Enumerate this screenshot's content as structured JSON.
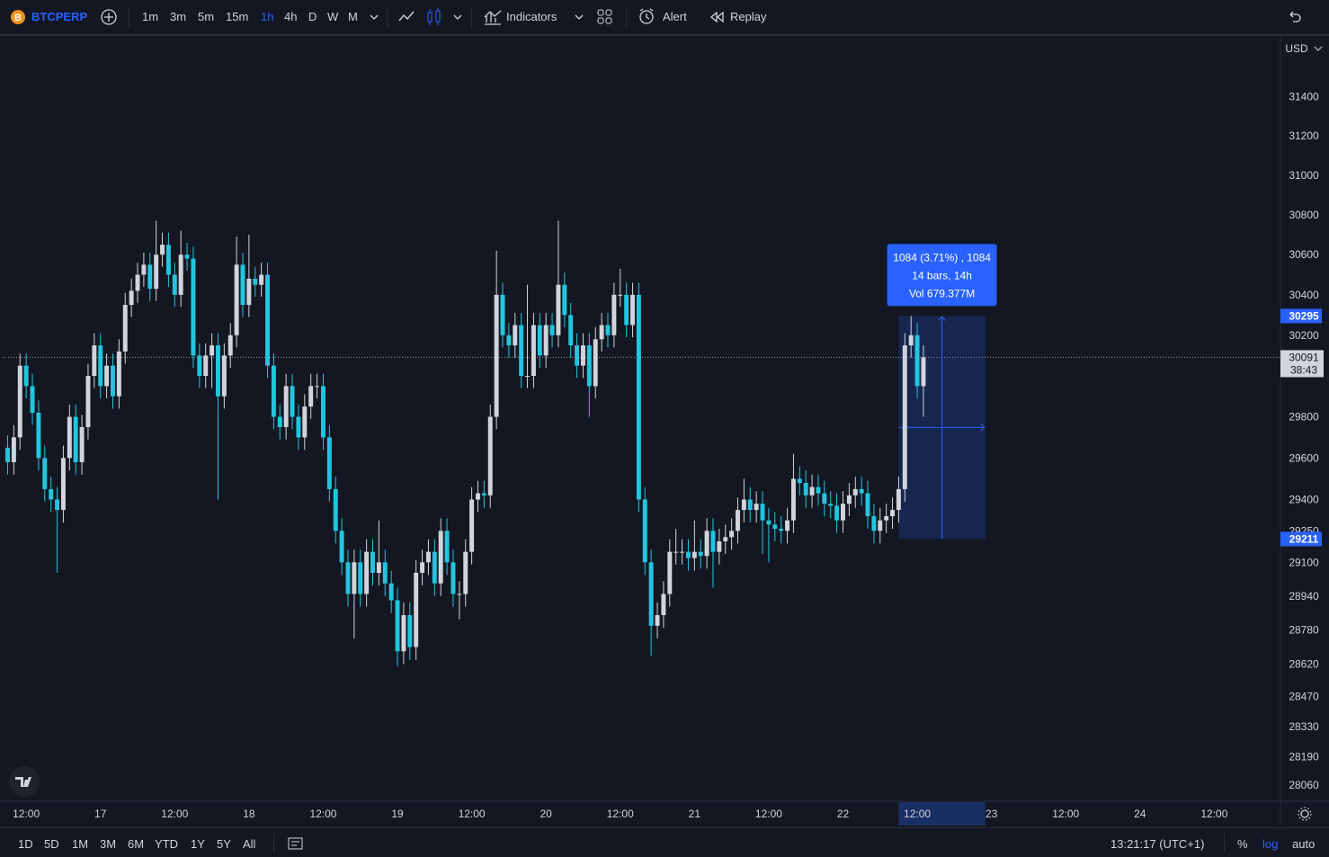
{
  "toolbar": {
    "symbol": "BTCPERP",
    "intervals": [
      "1m",
      "3m",
      "5m",
      "15m",
      "1h",
      "4h",
      "D",
      "W",
      "M"
    ],
    "active_interval": 4,
    "indicators": "Indicators",
    "alert": "Alert",
    "replay": "Replay"
  },
  "chart_data": {
    "type": "candlestick",
    "currency": "USD",
    "log_scale": true,
    "grid": false,
    "up_color": "#d1d4dc",
    "down_color": "#22c5de",
    "x": [
      9,
      10,
      11,
      12,
      13,
      14,
      15,
      16,
      17,
      18,
      19,
      20,
      21,
      22,
      23,
      24,
      25,
      26,
      27,
      28,
      29,
      30,
      31,
      32,
      33,
      34,
      35,
      36,
      37,
      38,
      39,
      40,
      41,
      42,
      43,
      44,
      45,
      46,
      47,
      48,
      49,
      50,
      51,
      52,
      53,
      54,
      55,
      56,
      57,
      58,
      59,
      60,
      61,
      62,
      63,
      64,
      65,
      66,
      67,
      68,
      69,
      70,
      71,
      72,
      73,
      74,
      75,
      76,
      77,
      78,
      79,
      80,
      81,
      82,
      83,
      84,
      85,
      86,
      87,
      88,
      89,
      90,
      91,
      92,
      93,
      94,
      95,
      96,
      97,
      98,
      99,
      100,
      101,
      102,
      103,
      104,
      105,
      106,
      107,
      108,
      109,
      110,
      111,
      112,
      113,
      114,
      115,
      116,
      117,
      118,
      119,
      120,
      121,
      122,
      123,
      124,
      125,
      126,
      127,
      128,
      129,
      130,
      131,
      132,
      133,
      134,
      135,
      136,
      137,
      138,
      139,
      140,
      141,
      142,
      143,
      144,
      145,
      146,
      147,
      148,
      149,
      150,
      151,
      152,
      153,
      154,
      155,
      156,
      157
    ],
    "open": [
      29650,
      29580,
      29700,
      30050,
      29950,
      29820,
      29600,
      29450,
      29400,
      29350,
      29600,
      29800,
      29580,
      29750,
      30000,
      30150,
      29950,
      30050,
      29900,
      30120,
      30350,
      30420,
      30500,
      30550,
      30430,
      30600,
      30650,
      30500,
      30400,
      30600,
      30580,
      30100,
      30000,
      30100,
      30150,
      29900,
      30100,
      30200,
      30550,
      30350,
      30480,
      30450,
      30500,
      30050,
      29800,
      29750,
      29950,
      29800,
      29700,
      29850,
      29950,
      29950,
      29700,
      29450,
      29250,
      29100,
      28950,
      29100,
      28950,
      29150,
      29050,
      29100,
      29000,
      28920,
      28680,
      28850,
      28700,
      29050,
      29100,
      29150,
      29000,
      29250,
      29100,
      28950,
      28950,
      29150,
      29400,
      29430,
      29420,
      29800,
      30400,
      30200,
      30150,
      30250,
      30000,
      30000,
      30250,
      30100,
      30250,
      30200,
      30450,
      30300,
      30150,
      30050,
      30150,
      29950,
      30180,
      30250,
      30200,
      30400,
      30400,
      30250,
      30400,
      29400,
      29100,
      28800,
      28850,
      28950,
      29150,
      29150,
      29150,
      29120,
      29150,
      29130,
      29250,
      29150,
      29200,
      29220,
      29250,
      29350,
      29400,
      29350,
      29380,
      29300,
      29280,
      29260,
      29250,
      29300,
      29500,
      29480,
      29420,
      29460,
      29430,
      29380,
      29370,
      29300,
      29380,
      29420,
      29450,
      29430,
      29320,
      29250,
      29300,
      29320,
      29350,
      29450,
      30150,
      30200,
      29950
    ],
    "high": [
      29710,
      29760,
      30110,
      30110,
      30010,
      29880,
      29660,
      29510,
      29460,
      29660,
      29860,
      29860,
      29810,
      30060,
      30210,
      30210,
      30110,
      30110,
      30180,
      30410,
      30480,
      30560,
      30610,
      30610,
      30770,
      30710,
      30710,
      30560,
      30720,
      30660,
      30640,
      30160,
      30160,
      30210,
      30210,
      30160,
      30260,
      30690,
      30610,
      30700,
      30540,
      30560,
      30560,
      30110,
      29860,
      30010,
      30010,
      29860,
      29910,
      30010,
      30010,
      30010,
      29760,
      29510,
      29310,
      29160,
      29160,
      29160,
      29210,
      29210,
      29300,
      29160,
      29060,
      28980,
      28910,
      28910,
      29110,
      29160,
      29210,
      29210,
      29310,
      29310,
      29160,
      29010,
      29210,
      29460,
      29490,
      29490,
      29860,
      30620,
      30460,
      30260,
      30310,
      30310,
      30450,
      30310,
      30310,
      30310,
      30310,
      30770,
      30510,
      30360,
      30210,
      30210,
      30210,
      30240,
      30310,
      30310,
      30460,
      30530,
      30460,
      30460,
      30460,
      29460,
      29160,
      28910,
      29010,
      29210,
      29260,
      29210,
      29210,
      29300,
      29210,
      29310,
      29310,
      29260,
      29280,
      29310,
      29410,
      29500,
      29460,
      29440,
      29440,
      29360,
      29340,
      29320,
      29360,
      29620,
      29560,
      29540,
      29520,
      29520,
      29490,
      29440,
      29430,
      29440,
      29480,
      29510,
      29510,
      29490,
      29380,
      29360,
      29380,
      29410,
      29510,
      30210,
      30295,
      30260,
      30150
    ],
    "low": [
      29520,
      29520,
      29640,
      29890,
      29760,
      29540,
      29390,
      29340,
      29050,
      29290,
      29540,
      29520,
      29520,
      29690,
      29940,
      29890,
      29890,
      29840,
      29840,
      30060,
      30290,
      30360,
      30440,
      30370,
      30370,
      30540,
      30440,
      30340,
      30340,
      30520,
      30040,
      29940,
      29940,
      29940,
      29400,
      29840,
      30040,
      30140,
      30290,
      30290,
      30390,
      30390,
      29990,
      29740,
      29690,
      29690,
      29740,
      29640,
      29640,
      29790,
      29890,
      29640,
      29390,
      29190,
      29040,
      28890,
      28740,
      28890,
      28890,
      28990,
      28990,
      28940,
      28860,
      28610,
      28620,
      28640,
      28640,
      28990,
      29040,
      28940,
      28940,
      29040,
      28890,
      28830,
      28890,
      29090,
      29340,
      29360,
      29360,
      29740,
      30140,
      30090,
      30090,
      29940,
      29940,
      29940,
      30040,
      30040,
      30140,
      30140,
      30240,
      30090,
      29990,
      29990,
      29800,
      29890,
      30120,
      30140,
      30140,
      30340,
      30190,
      30190,
      29340,
      29040,
      28660,
      28740,
      28790,
      28890,
      29090,
      29090,
      29060,
      29060,
      29070,
      29070,
      28980,
      29090,
      29140,
      29160,
      29190,
      29290,
      29290,
      29290,
      29140,
      29100,
      29200,
      29190,
      29190,
      29240,
      29420,
      29360,
      29360,
      29370,
      29320,
      29310,
      29240,
      29240,
      29320,
      29360,
      29370,
      29260,
      29190,
      29190,
      29240,
      29260,
      29290,
      29390,
      30090,
      29890,
      29800
    ],
    "close": [
      29580,
      29700,
      30050,
      29950,
      29820,
      29600,
      29450,
      29400,
      29350,
      29600,
      29800,
      29580,
      29750,
      30000,
      30150,
      29950,
      30050,
      29900,
      30120,
      30350,
      30420,
      30500,
      30550,
      30430,
      30600,
      30650,
      30500,
      30400,
      30600,
      30580,
      30100,
      30000,
      30100,
      30150,
      29900,
      30100,
      30200,
      30550,
      30350,
      30480,
      30450,
      30500,
      30050,
      29800,
      29750,
      29950,
      29800,
      29700,
      29850,
      29950,
      29950,
      29700,
      29450,
      29250,
      29100,
      28950,
      29100,
      28950,
      29150,
      29050,
      29100,
      29000,
      28920,
      28680,
      28850,
      28700,
      29050,
      29100,
      29150,
      29000,
      29250,
      29100,
      28950,
      28950,
      29150,
      29400,
      29430,
      29420,
      29800,
      30400,
      30200,
      30150,
      30250,
      30000,
      30000,
      30250,
      30100,
      30250,
      30200,
      30450,
      30300,
      30150,
      30050,
      30150,
      29950,
      30180,
      30250,
      30200,
      30400,
      30400,
      30250,
      30400,
      29400,
      29100,
      28800,
      28850,
      28950,
      29150,
      29150,
      29150,
      29120,
      29150,
      29130,
      29250,
      29150,
      29200,
      29220,
      29250,
      29350,
      29400,
      29350,
      29380,
      29300,
      29280,
      29260,
      29250,
      29300,
      29500,
      29480,
      29420,
      29460,
      29430,
      29380,
      29370,
      29300,
      29380,
      29420,
      29450,
      29430,
      29320,
      29250,
      29300,
      29320,
      29350,
      29450,
      30150,
      30200,
      29950,
      30091
    ],
    "xlim": [
      8.2,
      214.7
    ],
    "xticks": [
      {
        "value": 12,
        "label": "12:00"
      },
      {
        "value": 24,
        "label": "17"
      },
      {
        "value": 36,
        "label": "12:00"
      },
      {
        "value": 48,
        "label": "18"
      },
      {
        "value": 60,
        "label": "12:00"
      },
      {
        "value": 72,
        "label": "19"
      },
      {
        "value": 84,
        "label": "12:00"
      },
      {
        "value": 96,
        "label": "20"
      },
      {
        "value": 108,
        "label": "12:00"
      },
      {
        "value": 120,
        "label": "21"
      },
      {
        "value": 132,
        "label": "12:00"
      },
      {
        "value": 144,
        "label": "22"
      },
      {
        "value": 156,
        "label": "12:00"
      },
      {
        "value": 168,
        "label": "23"
      },
      {
        "value": 180,
        "label": "12:00"
      },
      {
        "value": 192,
        "label": "24"
      },
      {
        "value": 204,
        "label": "12:00"
      }
    ],
    "ylim": [
      27990,
      31690
    ],
    "yticks": [
      31400,
      31200,
      31000,
      30800,
      30600,
      30400,
      30200,
      29800,
      29600,
      29400,
      29250,
      29100,
      28940,
      28780,
      28620,
      28470,
      28330,
      28190,
      28060
    ],
    "last_price": 30091,
    "countdown": "38:43",
    "measure": {
      "from": 29211,
      "to": 30295,
      "x": [
        153,
        167
      ],
      "lines": [
        "1084 (3.71%) , 1084",
        "14 bars, 14h",
        "Vol 679.377M"
      ]
    }
  },
  "bottom_bar": {
    "ranges": [
      "1D",
      "5D",
      "1M",
      "3M",
      "6M",
      "YTD",
      "1Y",
      "5Y",
      "All"
    ],
    "clock": "13:21:17 (UTC+1)",
    "percent": "%",
    "log": "log",
    "auto": "auto"
  }
}
